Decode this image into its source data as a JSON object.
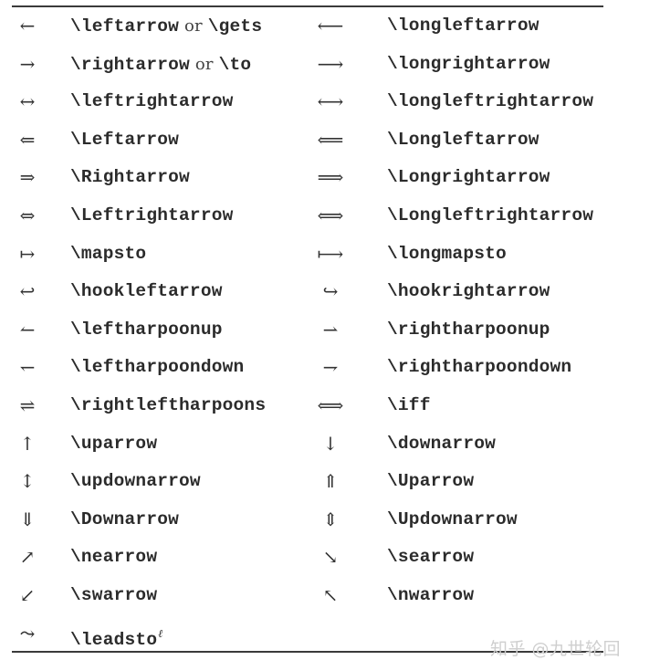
{
  "rows": [
    {
      "left_symbol": "←",
      "left_parts": [
        "\\leftarrow",
        " or ",
        "\\gets"
      ],
      "right_symbol": "⟵",
      "right_command": "\\longleftarrow"
    },
    {
      "left_symbol": "→",
      "left_parts": [
        "\\rightarrow",
        " or ",
        "\\to"
      ],
      "right_symbol": "⟶",
      "right_command": "\\longrightarrow"
    },
    {
      "left_symbol": "↔",
      "left_command": "\\leftrightarrow",
      "right_symbol": "⟷",
      "right_command": "\\longleftrightarrow"
    },
    {
      "left_symbol": "⇐",
      "left_command": "\\Leftarrow",
      "right_symbol": "⟸",
      "right_command": "\\Longleftarrow"
    },
    {
      "left_symbol": "⇒",
      "left_command": "\\Rightarrow",
      "right_symbol": "⟹",
      "right_command": "\\Longrightarrow"
    },
    {
      "left_symbol": "⇔",
      "left_command": "\\Leftrightarrow",
      "right_symbol": "⟺",
      "right_command": "\\Longleftrightarrow"
    },
    {
      "left_symbol": "↦",
      "left_command": "\\mapsto",
      "right_symbol": "⟼",
      "right_command": "\\longmapsto"
    },
    {
      "left_symbol": "↩",
      "left_command": "\\hookleftarrow",
      "right_symbol": "↪",
      "right_command": "\\hookrightarrow"
    },
    {
      "left_symbol": "↼",
      "left_command": "\\leftharpoonup",
      "right_symbol": "⇀",
      "right_command": "\\rightharpoonup"
    },
    {
      "left_symbol": "↽",
      "left_command": "\\leftharpoondown",
      "right_symbol": "⇁",
      "right_command": "\\rightharpoondown"
    },
    {
      "left_symbol": "⇌",
      "left_command": "\\rightleftharpoons",
      "right_symbol": "⟺",
      "right_command": "\\iff"
    },
    {
      "left_symbol": "↑",
      "left_command": "\\uparrow",
      "right_symbol": "↓",
      "right_command": "\\downarrow"
    },
    {
      "left_symbol": "↕",
      "left_command": "\\updownarrow",
      "right_symbol": "⇑",
      "right_command": "\\Uparrow"
    },
    {
      "left_symbol": "⇓",
      "left_command": "\\Downarrow",
      "right_symbol": "⇕",
      "right_command": "\\Updownarrow"
    },
    {
      "left_symbol": "↗",
      "left_command": "\\nearrow",
      "right_symbol": "↘",
      "right_command": "\\searrow"
    },
    {
      "left_symbol": "↙",
      "left_command": "\\swarrow",
      "right_symbol": "↖",
      "right_command": "\\nwarrow"
    },
    {
      "left_symbol": "⤳",
      "left_command": "\\leadsto",
      "left_superscript": "ℓ",
      "right_symbol": "",
      "right_command": ""
    }
  ],
  "watermark": "知乎 @九世轮回"
}
